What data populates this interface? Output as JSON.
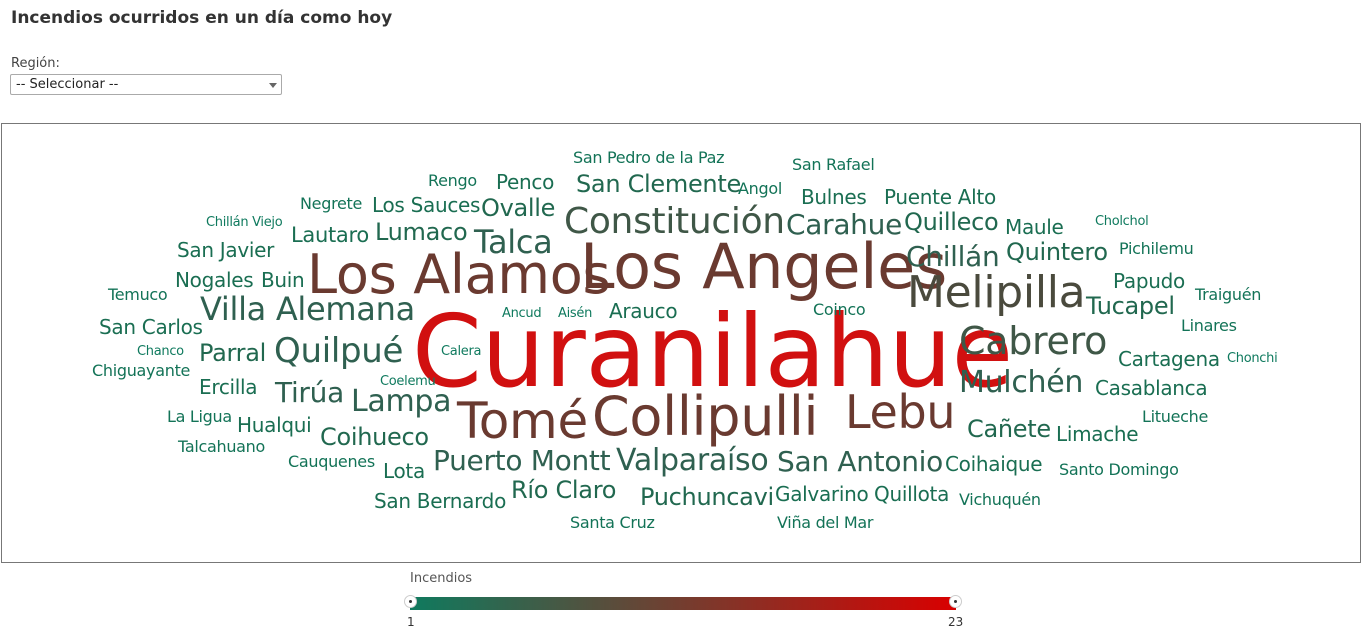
{
  "page": {
    "title": "Incendios ocurridos en un día como hoy"
  },
  "filter": {
    "label": "Región:",
    "selected": "-- Seleccionar --"
  },
  "legend": {
    "title": "Incendios",
    "min": "1",
    "max": "23",
    "color_low": "#0f7a5e",
    "color_high": "#d90000"
  },
  "cloud": {
    "words": [
      {
        "text": "Curanilahue",
        "value": 23,
        "color": "#d11010",
        "size": 100
      },
      {
        "text": "Los Angeles",
        "value": 16,
        "color": "#6a3a30",
        "size": 62
      },
      {
        "text": "Los Alamos",
        "value": 14,
        "color": "#6a3a30",
        "size": 54
      },
      {
        "text": "Collipulli",
        "value": 14,
        "color": "#6a3a30",
        "size": 54
      },
      {
        "text": "Tomé",
        "value": 13,
        "color": "#6a3a30",
        "size": 50
      },
      {
        "text": "Lebu",
        "value": 12,
        "color": "#6a3a30",
        "size": 46
      },
      {
        "text": "Melipilla",
        "value": 11,
        "color": "#4a4a3d",
        "size": 44
      },
      {
        "text": "Constitución",
        "value": 9,
        "color": "#3f5747",
        "size": 36
      },
      {
        "text": "Cabrero",
        "value": 9,
        "color": "#3f5747",
        "size": 38
      },
      {
        "text": "Villa Alemana",
        "value": 8,
        "color": "#2f6050",
        "size": 32
      },
      {
        "text": "Quilpué",
        "value": 8,
        "color": "#2f6050",
        "size": 34
      },
      {
        "text": "Mulchén",
        "value": 7,
        "color": "#2f6050",
        "size": 30
      },
      {
        "text": "Talca",
        "value": 7,
        "color": "#2f6050",
        "size": 32
      },
      {
        "text": "Valparaíso",
        "value": 7,
        "color": "#2f6050",
        "size": 30
      },
      {
        "text": "Puerto Montt",
        "value": 6,
        "color": "#2f6050",
        "size": 28
      },
      {
        "text": "San Antonio",
        "value": 6,
        "color": "#2f6050",
        "size": 28
      },
      {
        "text": "Lampa",
        "value": 6,
        "color": "#2f6050",
        "size": 30
      },
      {
        "text": "Carahue",
        "value": 6,
        "color": "#2f6050",
        "size": 28
      },
      {
        "text": "Tirúa",
        "value": 6,
        "color": "#2f6050",
        "size": 28
      },
      {
        "text": "Chillán",
        "value": 6,
        "color": "#2f6050",
        "size": 28
      },
      {
        "text": "Tucapel",
        "value": 5,
        "color": "#21684f",
        "size": 24
      },
      {
        "text": "Quilleco",
        "value": 5,
        "color": "#21684f",
        "size": 24
      },
      {
        "text": "Quintero",
        "value": 5,
        "color": "#21684f",
        "size": 24
      },
      {
        "text": "San Clemente",
        "value": 5,
        "color": "#21684f",
        "size": 24
      },
      {
        "text": "Ovalle",
        "value": 5,
        "color": "#21684f",
        "size": 24
      },
      {
        "text": "Lumaco",
        "value": 5,
        "color": "#21684f",
        "size": 24
      },
      {
        "text": "Coihueco",
        "value": 5,
        "color": "#21684f",
        "size": 24
      },
      {
        "text": "Río Claro",
        "value": 5,
        "color": "#21684f",
        "size": 24
      },
      {
        "text": "Puchuncavi",
        "value": 5,
        "color": "#21684f",
        "size": 24
      },
      {
        "text": "Parral",
        "value": 5,
        "color": "#21684f",
        "size": 24
      },
      {
        "text": "Cañete",
        "value": 5,
        "color": "#21684f",
        "size": 24
      },
      {
        "text": "Lautaro",
        "value": 4,
        "color": "#1a6e52",
        "size": 21
      },
      {
        "text": "San Javier",
        "value": 4,
        "color": "#1a6e52",
        "size": 20
      },
      {
        "text": "Nogales",
        "value": 4,
        "color": "#1a6e52",
        "size": 20
      },
      {
        "text": "Buin",
        "value": 4,
        "color": "#1a6e52",
        "size": 20
      },
      {
        "text": "San Carlos",
        "value": 4,
        "color": "#1a6e52",
        "size": 20
      },
      {
        "text": "Ercilla",
        "value": 4,
        "color": "#1a6e52",
        "size": 20
      },
      {
        "text": "Hualqui",
        "value": 4,
        "color": "#1a6e52",
        "size": 20
      },
      {
        "text": "Lota",
        "value": 4,
        "color": "#1a6e52",
        "size": 20
      },
      {
        "text": "San Bernardo",
        "value": 4,
        "color": "#1a6e52",
        "size": 20
      },
      {
        "text": "Los Sauces",
        "value": 4,
        "color": "#1a6e52",
        "size": 20
      },
      {
        "text": "Penco",
        "value": 4,
        "color": "#1a6e52",
        "size": 20
      },
      {
        "text": "Bulnes",
        "value": 4,
        "color": "#1a6e52",
        "size": 20
      },
      {
        "text": "Puente Alto",
        "value": 4,
        "color": "#1a6e52",
        "size": 20
      },
      {
        "text": "Maule",
        "value": 4,
        "color": "#1a6e52",
        "size": 20
      },
      {
        "text": "Papudo",
        "value": 4,
        "color": "#1a6e52",
        "size": 20
      },
      {
        "text": "Arauco",
        "value": 4,
        "color": "#1a6e52",
        "size": 20
      },
      {
        "text": "Cartagena",
        "value": 4,
        "color": "#1a6e52",
        "size": 20
      },
      {
        "text": "Casablanca",
        "value": 4,
        "color": "#1a6e52",
        "size": 20
      },
      {
        "text": "Limache",
        "value": 4,
        "color": "#1a6e52",
        "size": 20
      },
      {
        "text": "Coihaique",
        "value": 4,
        "color": "#1a6e52",
        "size": 20
      },
      {
        "text": "Galvarino",
        "value": 4,
        "color": "#1a6e52",
        "size": 20
      },
      {
        "text": "Quillota",
        "value": 4,
        "color": "#1a6e52",
        "size": 20
      },
      {
        "text": "San Pedro de la Paz",
        "value": 3,
        "color": "#137357",
        "size": 16
      },
      {
        "text": "San Rafael",
        "value": 3,
        "color": "#137357",
        "size": 16
      },
      {
        "text": "Angol",
        "value": 3,
        "color": "#137357",
        "size": 16
      },
      {
        "text": "Negrete",
        "value": 3,
        "color": "#137357",
        "size": 16
      },
      {
        "text": "Rengo",
        "value": 3,
        "color": "#137357",
        "size": 16
      },
      {
        "text": "Pichilemu",
        "value": 3,
        "color": "#137357",
        "size": 16
      },
      {
        "text": "Traiguén",
        "value": 3,
        "color": "#137357",
        "size": 16
      },
      {
        "text": "Linares",
        "value": 3,
        "color": "#137357",
        "size": 16
      },
      {
        "text": "Coinco",
        "value": 3,
        "color": "#137357",
        "size": 16
      },
      {
        "text": "Temuco",
        "value": 3,
        "color": "#137357",
        "size": 16
      },
      {
        "text": "Chiguayante",
        "value": 3,
        "color": "#137357",
        "size": 16
      },
      {
        "text": "La Ligua",
        "value": 3,
        "color": "#137357",
        "size": 16
      },
      {
        "text": "Talcahuano",
        "value": 3,
        "color": "#137357",
        "size": 16
      },
      {
        "text": "Cauquenes",
        "value": 3,
        "color": "#137357",
        "size": 16
      },
      {
        "text": "Litueche",
        "value": 3,
        "color": "#137357",
        "size": 16
      },
      {
        "text": "Santo Domingo",
        "value": 3,
        "color": "#137357",
        "size": 16
      },
      {
        "text": "Vichuquén",
        "value": 3,
        "color": "#137357",
        "size": 16
      },
      {
        "text": "Santa Cruz",
        "value": 3,
        "color": "#137357",
        "size": 16
      },
      {
        "text": "Viña del Mar",
        "value": 3,
        "color": "#137357",
        "size": 16
      },
      {
        "text": "Chillán Viejo",
        "value": 2,
        "color": "#0f7a5e",
        "size": 13
      },
      {
        "text": "Cholchol",
        "value": 2,
        "color": "#0f7a5e",
        "size": 13
      },
      {
        "text": "Ancud",
        "value": 2,
        "color": "#0f7a5e",
        "size": 13
      },
      {
        "text": "Aisén",
        "value": 2,
        "color": "#0f7a5e",
        "size": 13
      },
      {
        "text": "Calera",
        "value": 2,
        "color": "#0f7a5e",
        "size": 13
      },
      {
        "text": "Coelemu",
        "value": 2,
        "color": "#0f7a5e",
        "size": 13
      },
      {
        "text": "Chanco",
        "value": 2,
        "color": "#0f7a5e",
        "size": 13
      },
      {
        "text": "Chonchi",
        "value": 2,
        "color": "#0f7a5e",
        "size": 13
      }
    ]
  }
}
